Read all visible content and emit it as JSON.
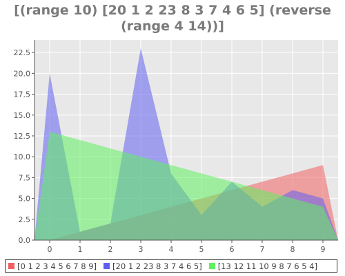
{
  "chart_data": {
    "type": "area",
    "title_lines": [
      "[(range 10) [20 1 2 23 8 3 7 4 6 5] (reverse",
      "(range 4 14))]"
    ],
    "xlabel": "",
    "ylabel": "",
    "x": [
      0,
      1,
      2,
      3,
      4,
      5,
      6,
      7,
      8,
      9
    ],
    "xlim": [
      -0.5,
      9.5
    ],
    "ylim": [
      0,
      24
    ],
    "x_ticks": [
      0,
      1,
      2,
      3,
      4,
      5,
      6,
      7,
      8,
      9
    ],
    "y_ticks": [
      0.0,
      2.5,
      5.0,
      7.5,
      10.0,
      12.5,
      15.0,
      17.5,
      20.0,
      22.5
    ],
    "y_tick_labels": [
      "0.0",
      "2.5",
      "5.0",
      "7.5",
      "10.0",
      "12.5",
      "15.0",
      "17.5",
      "20.0",
      "22.5"
    ],
    "grid": true,
    "legend_position": "bottom",
    "series": [
      {
        "name": "[0 1 2 3 4 5 6 7 8 9]",
        "values": [
          0,
          1,
          2,
          3,
          4,
          5,
          6,
          7,
          8,
          9
        ],
        "color": "#f06060"
      },
      {
        "name": "[20 1 2 23 8 3 7 4 6 5]",
        "values": [
          20,
          1,
          2,
          23,
          8,
          3,
          7,
          4,
          6,
          5
        ],
        "color": "#6060f0"
      },
      {
        "name": "[13 12 11 10 9 8 7 6 5 4]",
        "values": [
          13,
          12,
          11,
          10,
          9,
          8,
          7,
          6,
          5,
          4
        ],
        "color": "#60f060"
      }
    ]
  }
}
